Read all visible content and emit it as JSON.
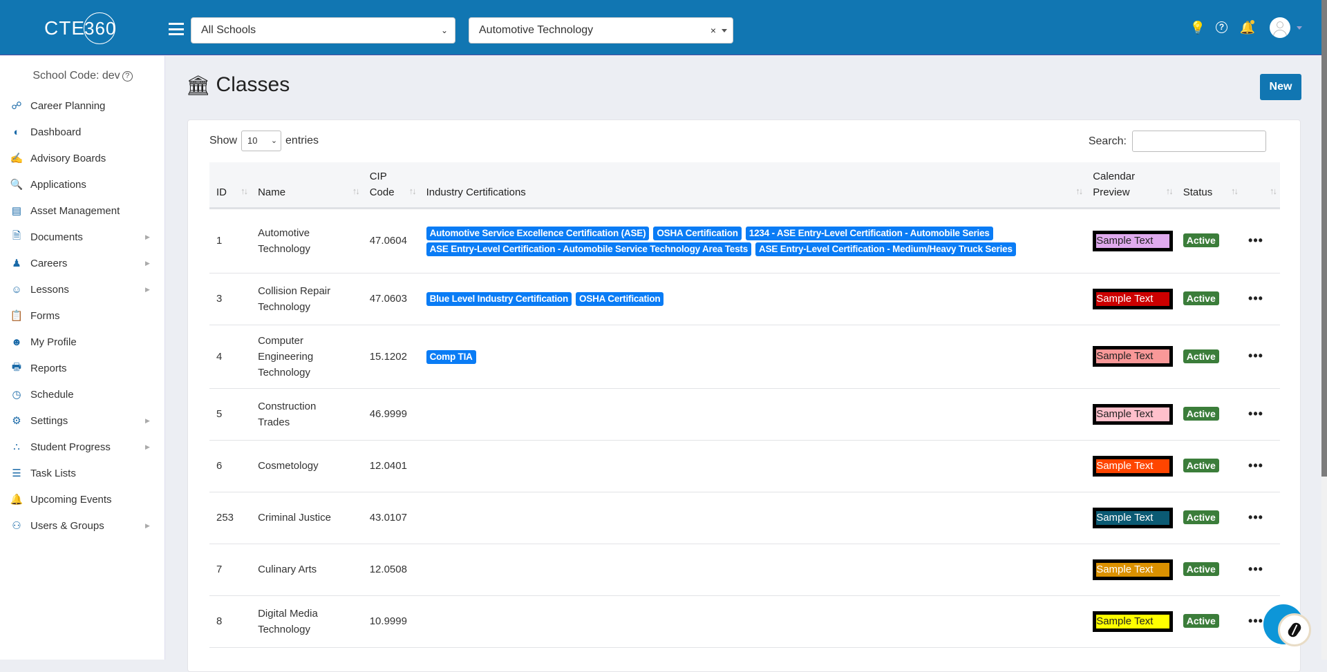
{
  "header": {
    "logo": {
      "text": "CTE",
      "ring": "360"
    },
    "school_select": "All Schools",
    "program_select": "Automotive Technology",
    "clear": "×"
  },
  "sidebar": {
    "school_code": "School Code: dev",
    "items": [
      {
        "label": "Career Planning",
        "icon": "network-icon",
        "sub": false
      },
      {
        "label": "Dashboard",
        "icon": "gauge-icon",
        "sub": false
      },
      {
        "label": "Advisory Boards",
        "icon": "handshake-icon",
        "sub": false
      },
      {
        "label": "Applications",
        "icon": "document-search-icon",
        "sub": false
      },
      {
        "label": "Asset Management",
        "icon": "warehouse-icon",
        "sub": false
      },
      {
        "label": "Documents",
        "icon": "file-icon",
        "sub": true
      },
      {
        "label": "Careers",
        "icon": "worker-icon",
        "sub": true
      },
      {
        "label": "Lessons",
        "icon": "classroom-icon",
        "sub": true
      },
      {
        "label": "Forms",
        "icon": "form-icon",
        "sub": false
      },
      {
        "label": "My Profile",
        "icon": "user-icon",
        "sub": false
      },
      {
        "label": "Reports",
        "icon": "printer-icon",
        "sub": false
      },
      {
        "label": "Schedule",
        "icon": "clock-icon",
        "sub": false
      },
      {
        "label": "Settings",
        "icon": "gears-icon",
        "sub": true
      },
      {
        "label": "Student Progress",
        "icon": "progress-icon",
        "sub": true
      },
      {
        "label": "Task Lists",
        "icon": "list-icon",
        "sub": false
      },
      {
        "label": "Upcoming Events",
        "icon": "bell-icon",
        "sub": false
      },
      {
        "label": "Users & Groups",
        "icon": "users-icon",
        "sub": true
      }
    ]
  },
  "page": {
    "title": "Classes",
    "new_label": "New"
  },
  "table_controls": {
    "show": "Show",
    "length": "10",
    "entries": "entries",
    "search_label": "Search:",
    "search_value": ""
  },
  "table": {
    "columns": [
      "ID",
      "Name",
      "CIP Code",
      "Industry Certifications",
      "Calendar Preview",
      "Status",
      ""
    ],
    "rows": [
      {
        "id": "1",
        "name": "Automotive Technology",
        "cip": "47.0604",
        "certs": [
          "Automotive Service Excellence Certification (ASE)",
          "OSHA Certification",
          "1234 - ASE Entry-Level Certification - Automobile Series",
          "ASE Entry-Level Certification - Automobile Service Technology Area Tests",
          "ASE Entry-Level Certification - Medium/Heavy Truck Series"
        ],
        "preview": "Sample Text",
        "bg": "#e0aaee",
        "fg": "#222222",
        "status": "Active"
      },
      {
        "id": "3",
        "name": "Collision Repair Technology",
        "cip": "47.0603",
        "certs": [
          "Blue Level Industry Certification",
          "OSHA Certification"
        ],
        "preview": "Sample Text",
        "bg": "#cc0000",
        "fg": "#ffffff",
        "status": "Active"
      },
      {
        "id": "4",
        "name": "Computer Engineering Technology",
        "cip": "15.1202",
        "certs": [
          "Comp TIA"
        ],
        "preview": "Sample Text",
        "bg": "#f99898",
        "fg": "#222222",
        "status": "Active"
      },
      {
        "id": "5",
        "name": "Construction Trades",
        "cip": "46.9999",
        "certs": [],
        "preview": "Sample Text",
        "bg": "#ffc0cb",
        "fg": "#222222",
        "status": "Active"
      },
      {
        "id": "6",
        "name": "Cosmetology",
        "cip": "12.0401",
        "certs": [],
        "preview": "Sample Text",
        "bg": "#ff4500",
        "fg": "#ffffff",
        "status": "Active"
      },
      {
        "id": "253",
        "name": "Criminal Justice",
        "cip": "43.0107",
        "certs": [],
        "preview": "Sample Text",
        "bg": "#0b5a73",
        "fg": "#ffffff",
        "status": "Active"
      },
      {
        "id": "7",
        "name": "Culinary Arts",
        "cip": "12.0508",
        "certs": [],
        "preview": "Sample Text",
        "bg": "#db9100",
        "fg": "#ffffff",
        "status": "Active"
      },
      {
        "id": "8",
        "name": "Digital Media Technology",
        "cip": "10.9999",
        "certs": [],
        "preview": "Sample Text",
        "bg": "#ffff00",
        "fg": "#222222",
        "status": "Active"
      }
    ]
  },
  "colors": {
    "brand": "#1176b2",
    "badge": "#0a7cf5",
    "active": "#3b7d3a"
  }
}
